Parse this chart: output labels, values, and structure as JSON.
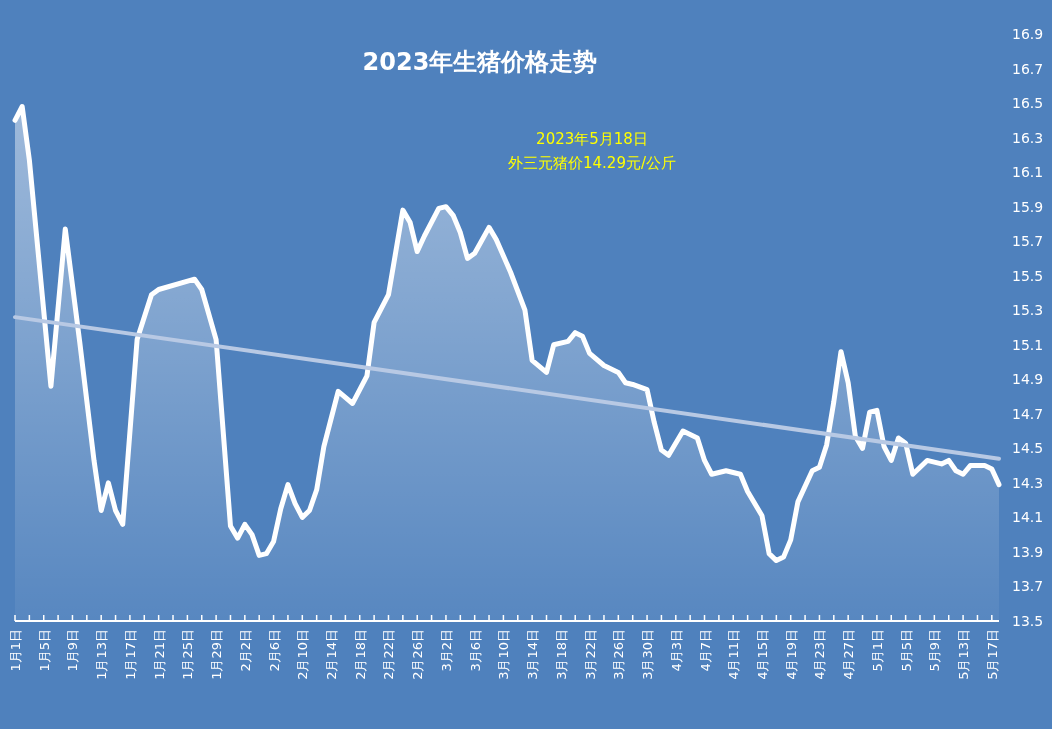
{
  "chart_data": {
    "type": "area",
    "title": "2023年生猪价格走势",
    "annotations": [
      "2023年5月18日",
      "外三元猪价14.29元/公斤"
    ],
    "xlim": [
      "--01-01",
      "--05-18"
    ],
    "ylim": [
      13.5,
      16.9
    ],
    "yticks": [
      13.5,
      13.7,
      13.9,
      14.1,
      14.3,
      14.5,
      14.7,
      14.9,
      15.1,
      15.3,
      15.5,
      15.7,
      15.9,
      16.1,
      16.3,
      16.5,
      16.7,
      16.9
    ],
    "xticks": [
      {
        "value": "--01-01",
        "label": "1月1日"
      },
      {
        "value": "--01-03",
        "label": null
      },
      {
        "value": "--01-05",
        "label": "1月5日"
      },
      {
        "value": "--01-07",
        "label": null
      },
      {
        "value": "--01-09",
        "label": "1月9日"
      },
      {
        "value": "--01-11",
        "label": null
      },
      {
        "value": "--01-13",
        "label": "1月13日"
      },
      {
        "value": "--01-15",
        "label": null
      },
      {
        "value": "--01-17",
        "label": "1月17日"
      },
      {
        "value": "--01-19",
        "label": null
      },
      {
        "value": "--01-21",
        "label": "1月21日"
      },
      {
        "value": "--01-23",
        "label": null
      },
      {
        "value": "--01-25",
        "label": "1月25日"
      },
      {
        "value": "--01-27",
        "label": null
      },
      {
        "value": "--01-29",
        "label": "1月29日"
      },
      {
        "value": "--01-31",
        "label": null
      },
      {
        "value": "--02-02",
        "label": "2月2日"
      },
      {
        "value": "--02-04",
        "label": null
      },
      {
        "value": "--02-06",
        "label": "2月6日"
      },
      {
        "value": "--02-08",
        "label": null
      },
      {
        "value": "--02-10",
        "label": "2月10日"
      },
      {
        "value": "--02-12",
        "label": null
      },
      {
        "value": "--02-14",
        "label": "2月14日"
      },
      {
        "value": "--02-16",
        "label": null
      },
      {
        "value": "--02-18",
        "label": "2月18日"
      },
      {
        "value": "--02-20",
        "label": null
      },
      {
        "value": "--02-22",
        "label": "2月22日"
      },
      {
        "value": "--02-24",
        "label": null
      },
      {
        "value": "--02-26",
        "label": "2月26日"
      },
      {
        "value": "--02-28",
        "label": null
      },
      {
        "value": "--03-02",
        "label": "3月2日"
      },
      {
        "value": "--03-04",
        "label": null
      },
      {
        "value": "--03-06",
        "label": "3月6日"
      },
      {
        "value": "--03-08",
        "label": null
      },
      {
        "value": "--03-10",
        "label": "3月10日"
      },
      {
        "value": "--03-12",
        "label": null
      },
      {
        "value": "--03-14",
        "label": "3月14日"
      },
      {
        "value": "--03-16",
        "label": null
      },
      {
        "value": "--03-18",
        "label": "3月18日"
      },
      {
        "value": "--03-20",
        "label": null
      },
      {
        "value": "--03-22",
        "label": "3月22日"
      },
      {
        "value": "--03-24",
        "label": null
      },
      {
        "value": "--03-26",
        "label": "3月26日"
      },
      {
        "value": "--03-28",
        "label": null
      },
      {
        "value": "--03-30",
        "label": "3月30日"
      },
      {
        "value": "--04-01",
        "label": null
      },
      {
        "value": "--04-03",
        "label": "4月3日"
      },
      {
        "value": "--04-05",
        "label": null
      },
      {
        "value": "--04-07",
        "label": "4月7日"
      },
      {
        "value": "--04-09",
        "label": null
      },
      {
        "value": "--04-11",
        "label": "4月11日"
      },
      {
        "value": "--04-13",
        "label": null
      },
      {
        "value": "--04-15",
        "label": "4月15日"
      },
      {
        "value": "--04-17",
        "label": null
      },
      {
        "value": "--04-19",
        "label": "4月19日"
      },
      {
        "value": "--04-21",
        "label": null
      },
      {
        "value": "--04-23",
        "label": "4月23日"
      },
      {
        "value": "--04-25",
        "label": null
      },
      {
        "value": "--04-27",
        "label": "4月27日"
      },
      {
        "value": "--04-29",
        "label": null
      },
      {
        "value": "--05-01",
        "label": "5月1日"
      },
      {
        "value": "--05-03",
        "label": null
      },
      {
        "value": "--05-05",
        "label": "5月5日"
      },
      {
        "value": "--05-07",
        "label": null
      },
      {
        "value": "--05-09",
        "label": "5月9日"
      },
      {
        "value": "--05-11",
        "label": null
      },
      {
        "value": "--05-13",
        "label": "5月13日"
      },
      {
        "value": "--05-15",
        "label": null
      },
      {
        "value": "--05-17",
        "label": "5月17日"
      }
    ],
    "series": [
      {
        "type": "area",
        "color": "#ffffff",
        "x": [
          "--01-01",
          "--01-02",
          "--01-03",
          "--01-06",
          "--01-08",
          "--01-10",
          "--01-12",
          "--01-13",
          "--01-14",
          "--01-15",
          "--01-16",
          "--01-18",
          "--01-20",
          "--01-21",
          "--01-26",
          "--01-27",
          "--01-29",
          "--01-31",
          "--02-01",
          "--02-02",
          "--02-03",
          "--02-04",
          "--02-05",
          "--02-06",
          "--02-07",
          "--02-08",
          "--02-09",
          "--02-10",
          "--02-11",
          "--02-12",
          "--02-13",
          "--02-14",
          "--02-15",
          "--02-17",
          "--02-19",
          "--02-20",
          "--02-22",
          "--02-24",
          "--02-25",
          "--02-26",
          "--02-27",
          "--03-01",
          "--03-02",
          "--03-03",
          "--03-04",
          "--03-05",
          "--03-06",
          "--03-08",
          "--03-09",
          "--03-11",
          "--03-13",
          "--03-14",
          "--03-16",
          "--03-17",
          "--03-19",
          "--03-20",
          "--03-21",
          "--03-22",
          "--03-24",
          "--03-26",
          "--03-27",
          "--03-28",
          "--03-30",
          "--03-31",
          "--04-01",
          "--04-02",
          "--04-04",
          "--04-06",
          "--04-07",
          "--04-08",
          "--04-10",
          "--04-12",
          "--04-13",
          "--04-15",
          "--04-16",
          "--04-17",
          "--04-18",
          "--04-19",
          "--04-20",
          "--04-22",
          "--04-23",
          "--04-24",
          "--04-25",
          "--04-26",
          "--04-27",
          "--04-28",
          "--04-29",
          "--04-30",
          "--05-01",
          "--05-02",
          "--05-03",
          "--05-04",
          "--05-05",
          "--05-06",
          "--05-08",
          "--05-10",
          "--05-11",
          "--05-12",
          "--05-13",
          "--05-14",
          "--05-16",
          "--05-17",
          "--05-18"
        ],
        "values": [
          16.4,
          16.48,
          16.17,
          14.86,
          15.77,
          15.12,
          14.43,
          14.14,
          14.3,
          14.14,
          14.06,
          15.13,
          15.39,
          15.42,
          15.48,
          15.42,
          15.13,
          14.05,
          13.98,
          14.06,
          14.0,
          13.88,
          13.89,
          13.96,
          14.15,
          14.29,
          14.18,
          14.1,
          14.14,
          14.26,
          14.51,
          14.67,
          14.83,
          14.76,
          14.92,
          15.23,
          15.39,
          15.88,
          15.81,
          15.64,
          15.73,
          15.89,
          15.9,
          15.85,
          15.75,
          15.6,
          15.63,
          15.78,
          15.71,
          15.52,
          15.3,
          15.01,
          14.94,
          15.1,
          15.12,
          15.17,
          15.15,
          15.05,
          14.98,
          14.94,
          14.88,
          14.87,
          14.84,
          14.65,
          14.49,
          14.46,
          14.6,
          14.56,
          14.43,
          14.35,
          14.37,
          14.35,
          14.25,
          14.11,
          13.89,
          13.85,
          13.87,
          13.97,
          14.19,
          14.37,
          14.39,
          14.52,
          14.77,
          15.06,
          14.88,
          14.57,
          14.5,
          14.71,
          14.72,
          14.51,
          14.43,
          14.56,
          14.53,
          14.35,
          14.43,
          14.41,
          14.43,
          14.37,
          14.35,
          14.4,
          14.4,
          14.38,
          14.29
        ]
      },
      {
        "type": "line",
        "color": "#b8c9e4",
        "x": [
          "--01-01",
          "--05-18"
        ],
        "values": [
          15.26,
          14.44
        ]
      }
    ]
  }
}
